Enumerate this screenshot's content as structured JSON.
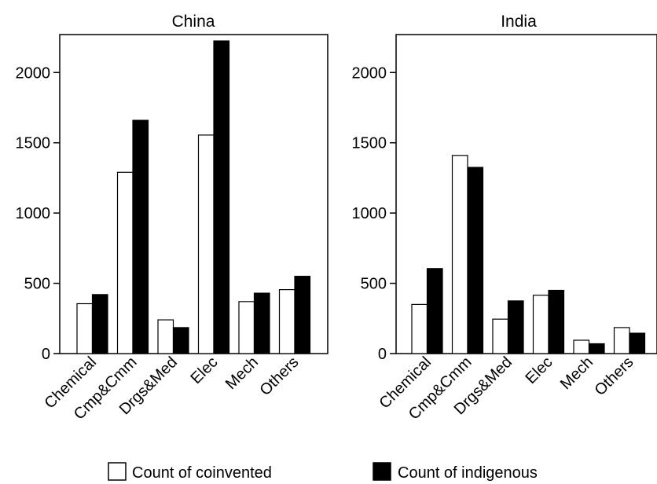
{
  "chart_data": [
    {
      "type": "bar",
      "title": "China",
      "categories": [
        "Chemical",
        "Cmp&Cmm",
        "Drgs&Med",
        "Elec",
        "Mech",
        "Others"
      ],
      "series": [
        {
          "name": "Count of coinvented",
          "values": [
            355,
            1290,
            240,
            1555,
            370,
            455
          ]
        },
        {
          "name": "Count of indigenous",
          "values": [
            420,
            1660,
            185,
            2225,
            430,
            550
          ]
        }
      ],
      "ylim": [
        0,
        2270
      ],
      "yticks": [
        0,
        500,
        1000,
        1500,
        2000
      ],
      "xlabel": "",
      "ylabel": ""
    },
    {
      "type": "bar",
      "title": "India",
      "categories": [
        "Chemical",
        "Cmp&Cmm",
        "Drgs&Med",
        "Elec",
        "Mech",
        "Others"
      ],
      "series": [
        {
          "name": "Count of coinvented",
          "values": [
            350,
            1410,
            245,
            415,
            95,
            185
          ]
        },
        {
          "name": "Count of indigenous",
          "values": [
            605,
            1325,
            375,
            450,
            70,
            145
          ]
        }
      ],
      "ylim": [
        0,
        2270
      ],
      "yticks": [
        0,
        500,
        1000,
        1500,
        2000
      ],
      "xlabel": "",
      "ylabel": ""
    }
  ],
  "legend": {
    "placement": "bottom",
    "items": [
      {
        "label": "Count of coinvented",
        "color": "#ffffff"
      },
      {
        "label": "Count of indigenous",
        "color": "#000000"
      }
    ]
  },
  "colors": {
    "coinvented": "#ffffff",
    "indigenous": "#000000",
    "stroke": "#000000"
  }
}
